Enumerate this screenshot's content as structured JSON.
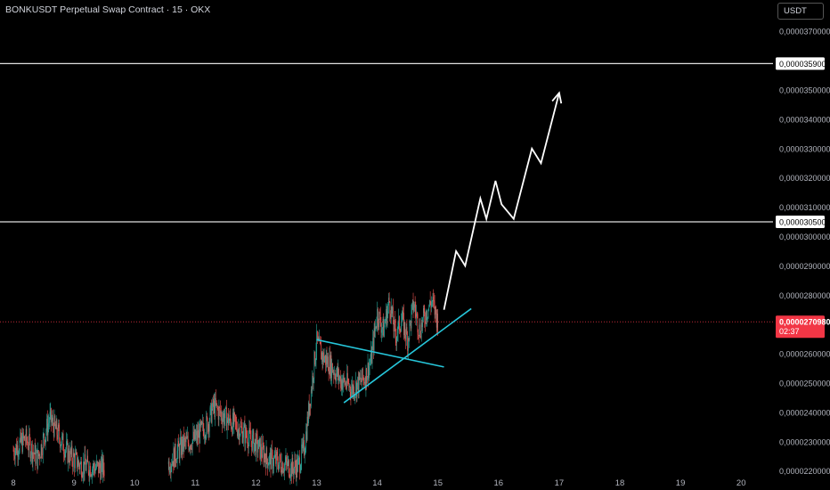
{
  "header": {
    "title": "BONKUSDT Perpetual Swap Contract · 15 · OKX",
    "currency": "USDT"
  },
  "colors": {
    "background": "#000000",
    "up": "#26a69a",
    "down": "#ef5350",
    "trendline": "#26c6da",
    "projection": "#ffffff",
    "price_badge": "#f23645"
  },
  "chart_data": {
    "type": "candlestick",
    "title": "BONKUSDT Perpetual Swap Contract · 15 · OKX",
    "xlabel": "",
    "ylabel": "",
    "ylim": [
      2.19e-05,
      3.74e-05
    ],
    "x_ticks": [
      "8",
      "9",
      "10",
      "11",
      "12",
      "13",
      "14",
      "15",
      "16",
      "17",
      "18",
      "19",
      "20"
    ],
    "y_ticks": [
      "0,0000370000",
      "0,0000350000",
      "0,0000340000",
      "0,0000330000",
      "0,0000320000",
      "0,0000310000",
      "0,0000300000",
      "0,0000290000",
      "0,0000280000",
      "0,0000260000",
      "0,0000250000",
      "0,0000240000",
      "0,0000230000",
      "0,0000220000"
    ],
    "price_path": {
      "days": [
        8.0,
        8.2,
        8.4,
        8.6,
        8.9,
        9.1,
        9.4,
        10.5,
        10.8,
        11.0,
        11.2,
        11.3,
        11.5,
        11.7,
        12.0,
        12.2,
        12.4,
        12.6,
        12.7,
        12.8,
        12.9,
        13.0,
        13.1,
        13.2,
        13.4,
        13.6,
        13.8,
        13.9,
        14.0,
        14.1,
        14.2,
        14.3,
        14.4,
        14.5,
        14.6,
        14.7,
        14.8,
        14.9,
        15.0
      ],
      "values": [
        2.27e-05,
        2.31e-05,
        2.24e-05,
        2.38e-05,
        2.26e-05,
        2.22e-05,
        2.21e-05,
        2.21e-05,
        2.29e-05,
        2.31e-05,
        2.36e-05,
        2.42e-05,
        2.38e-05,
        2.35e-05,
        2.29e-05,
        2.24e-05,
        2.23e-05,
        2.21e-05,
        2.22e-05,
        2.28e-05,
        2.46e-05,
        2.64e-05,
        2.59e-05,
        2.57e-05,
        2.51e-05,
        2.48e-05,
        2.52e-05,
        2.58e-05,
        2.74e-05,
        2.68e-05,
        2.78e-05,
        2.66e-05,
        2.72e-05,
        2.65e-05,
        2.77e-05,
        2.68e-05,
        2.74e-05,
        2.78e-05,
        2.71e-05
      ]
    },
    "horizontal_levels": [
      {
        "value": 3.59e-05,
        "label": "0,0000359000"
      },
      {
        "value": 3.05e-05,
        "label": "0,0000305000"
      }
    ],
    "current_price": {
      "value": 2.709e-05,
      "label": "0,0000270980",
      "countdown": "02:37"
    },
    "trendlines": [
      {
        "from": [
          13.0,
          2.648e-05
        ],
        "to": [
          15.1,
          2.555e-05
        ]
      },
      {
        "from": [
          13.45,
          2.433e-05
        ],
        "to": [
          15.55,
          2.754e-05
        ]
      }
    ],
    "projection": {
      "days": [
        15.1,
        15.3,
        15.45,
        15.7,
        15.8,
        15.95,
        16.05,
        16.25,
        16.55,
        16.7,
        17.0
      ],
      "values": [
        2.75e-05,
        2.95e-05,
        2.9e-05,
        3.13e-05,
        3.06e-05,
        3.19e-05,
        3.11e-05,
        3.06e-05,
        3.3e-05,
        3.25e-05,
        3.49e-05
      ]
    }
  }
}
